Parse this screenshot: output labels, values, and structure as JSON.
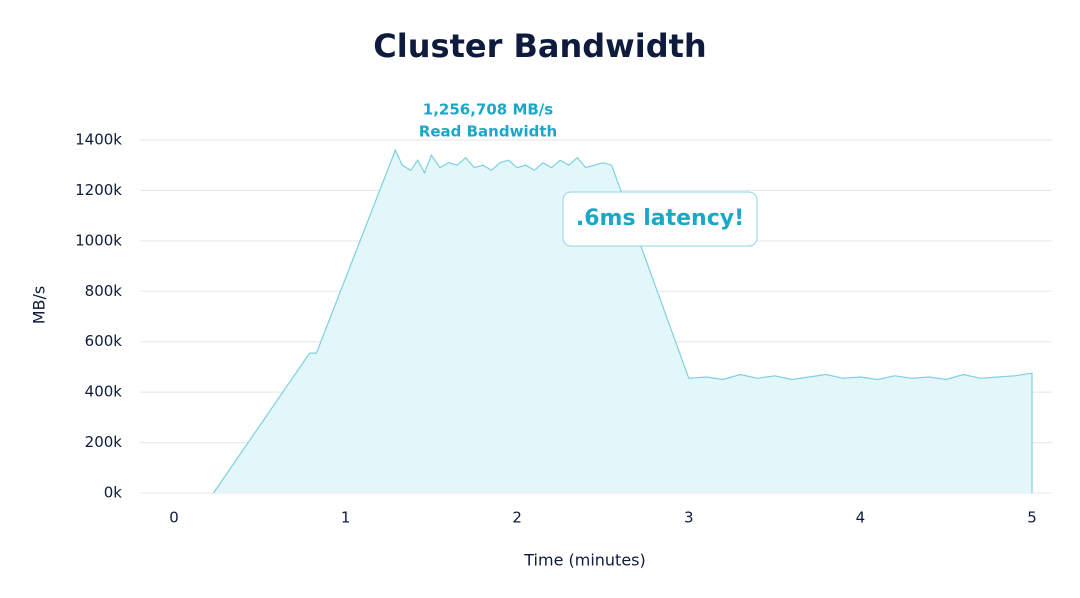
{
  "chart_data": {
    "type": "area",
    "title": "Cluster Bandwidth",
    "x_label": "Time (minutes)",
    "y_label": "MB/s",
    "annotations": [
      "1,256,708 MB/s",
      "Read Bandwidth",
      ".6ms latency!"
    ],
    "x": [
      0.23,
      0.79,
      0.83,
      1.29,
      1.33,
      1.38,
      1.42,
      1.46,
      1.5,
      1.55,
      1.6,
      1.65,
      1.7,
      1.75,
      1.8,
      1.85,
      1.9,
      1.95,
      2.0,
      2.05,
      2.1,
      2.15,
      2.2,
      2.25,
      2.3,
      2.35,
      2.4,
      2.45,
      2.5,
      2.55,
      3.0,
      3.1,
      3.2,
      3.3,
      3.4,
      3.5,
      3.6,
      3.7,
      3.8,
      3.9,
      4.0,
      4.1,
      4.2,
      4.3,
      4.4,
      4.5,
      4.6,
      4.7,
      4.8,
      4.9,
      5.0,
      5.0
    ],
    "series": [
      {
        "name": "Read Bandwidth",
        "color": "#7fd0df",
        "fill": "#e3f7fa",
        "values": [
          0,
          555000,
          555000,
          1360000,
          1300000,
          1280000,
          1320000,
          1270000,
          1340000,
          1290000,
          1310000,
          1300000,
          1330000,
          1290000,
          1300000,
          1280000,
          1310000,
          1320000,
          1290000,
          1300000,
          1280000,
          1310000,
          1290000,
          1320000,
          1300000,
          1330000,
          1290000,
          1300000,
          1310000,
          1300000,
          455000,
          460000,
          450000,
          470000,
          455000,
          465000,
          450000,
          460000,
          470000,
          455000,
          460000,
          450000,
          465000,
          455000,
          460000,
          450000,
          470000,
          455000,
          460000,
          465000,
          475000,
          0
        ]
      }
    ],
    "xlim": [
      0,
      5
    ],
    "xticks": [
      0,
      1,
      2,
      3,
      4,
      5
    ],
    "ylim": [
      0,
      1400000
    ],
    "yticks": [
      {
        "value": 0,
        "label": "0k"
      },
      {
        "value": 200000,
        "label": "200k"
      },
      {
        "value": 400000,
        "label": "400k"
      },
      {
        "value": 600000,
        "label": "600k"
      },
      {
        "value": 800000,
        "label": "800k"
      },
      {
        "value": 1000000,
        "label": "1000k"
      },
      {
        "value": 1200000,
        "label": "1200k"
      },
      {
        "value": 1400000,
        "label": "1400k"
      }
    ],
    "grid": true
  }
}
